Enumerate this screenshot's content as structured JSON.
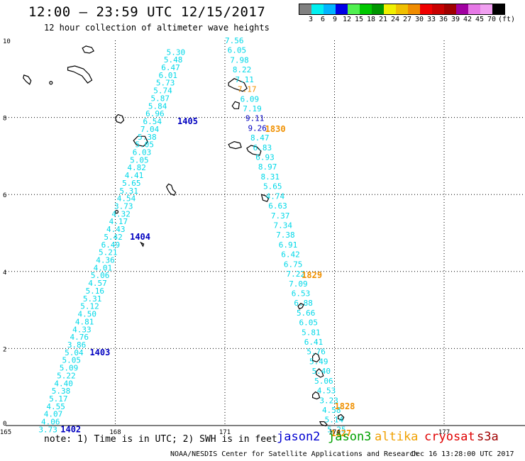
{
  "header": {
    "title": "12:00 – 23:59 UTC 12/15/2017",
    "subtitle": "12 hour collection of altimeter wave heights"
  },
  "legend": {
    "colors": [
      "#808080",
      "#00f0f0",
      "#00b4ff",
      "#0000e6",
      "#50f050",
      "#00c800",
      "#009600",
      "#f0f000",
      "#f0c000",
      "#f08c00",
      "#f00000",
      "#c80000",
      "#a00000",
      "#a000a0",
      "#e678e6",
      "#f0a0f0",
      "#000000"
    ],
    "labels": [
      "3",
      "6",
      "9",
      "12",
      "15",
      "18",
      "21",
      "24",
      "27",
      "30",
      "33",
      "36",
      "39",
      "42",
      "45",
      "70",
      "(ft)"
    ]
  },
  "axes": {
    "x_ticks": [
      "165",
      "168",
      "171",
      "174",
      "177"
    ],
    "y_ticks": [
      "0",
      "2",
      "4",
      "6",
      "8",
      "10"
    ]
  },
  "tracks": [
    {
      "satellite": "jason2",
      "color": "#0000c0",
      "label_color": "#00d8e8",
      "lat_start": -0.1,
      "lat_end": 9.7,
      "lon_start": 165.9,
      "lon_end": 169.4,
      "values": [
        "3.73",
        "4.06",
        "4.07",
        "4.55",
        "5.17",
        "5.38",
        "4.40",
        "5.22",
        "5.09",
        "5.05",
        "5.04",
        "3.86",
        "4.76",
        "4.33",
        "4.81",
        "4.50",
        "5.12",
        "5.31",
        "5.16",
        "4.57",
        "5.06",
        "4.01",
        "4.36",
        "5.21",
        "6.49",
        "5.42",
        "4.43",
        "4.17",
        "4.32",
        "3.73",
        "4.54",
        "5.31",
        "5.65",
        "4.41",
        "4.82",
        "5.05",
        "6.03",
        "5.05",
        "5.38",
        "7.04",
        "6.54",
        "6.96",
        "5.84",
        "5.87",
        "5.74",
        "5.73",
        "6.01",
        "6.47",
        "5.48",
        "5.30"
      ],
      "passes": [
        {
          "id": "1402",
          "lat": -0.1,
          "lon": 166.5
        },
        {
          "id": "1403",
          "lat": 1.9,
          "lon": 167.3
        },
        {
          "id": "1404",
          "lat": 4.9,
          "lon": 168.4
        },
        {
          "id": "1405",
          "lat": 7.9,
          "lon": 169.7
        }
      ]
    },
    {
      "satellite": "altika",
      "color": "#f09000",
      "label_color": "#00d8e8",
      "lat_start": 10.0,
      "lat_end": -0.1,
      "lon_start": 171.0,
      "lon_end": 173.8,
      "values": [
        "7.56",
        "6.05",
        "7.98",
        "8.22",
        "7.11",
        "7.17",
        "6.09",
        "7.19",
        "9.11",
        "9.26",
        "8.47",
        "6.83",
        "6.93",
        "8.97",
        "8.31",
        "5.65",
        "4.74",
        "6.63",
        "7.37",
        "7.34",
        "7.38",
        "6.91",
        "6.42",
        "6.75",
        "7.22",
        "7.09",
        "6.53",
        "6.88",
        "5.66",
        "6.05",
        "5.81",
        "6.41",
        "5.76",
        "5.49",
        "5.40",
        "5.06",
        "4.53",
        "3.23",
        "4.58",
        "5.14",
        "5.25"
      ],
      "highlight": {
        "8": "#0000c0",
        "9": "#0000c0",
        "5": "#f09000"
      },
      "passes": [
        {
          "id": "1830",
          "lat": 7.7,
          "lon": 172.1
        },
        {
          "id": "1829",
          "lat": 3.9,
          "lon": 173.1
        },
        {
          "id": "1828",
          "lat": 0.5,
          "lon": 174.0
        },
        {
          "id": "1827",
          "lat": -0.2,
          "lon": 173.9
        }
      ]
    }
  ],
  "footer": {
    "note": "note: 1) Time is in UTC; 2) SWH is in feet",
    "satellites": [
      {
        "name": "jason2",
        "color": "#0000d0"
      },
      {
        "name": "jason3",
        "color": "#00a000"
      },
      {
        "name": "altika",
        "color": "#f0a000"
      },
      {
        "name": "cryosat",
        "color": "#e00000"
      },
      {
        "name": "s3a",
        "color": "#a00000"
      }
    ],
    "credit": "NOAA/NESDIS Center for Satellite Applications and Research",
    "timestamp": "Dec 16 13:28:00 UTC 2017"
  }
}
